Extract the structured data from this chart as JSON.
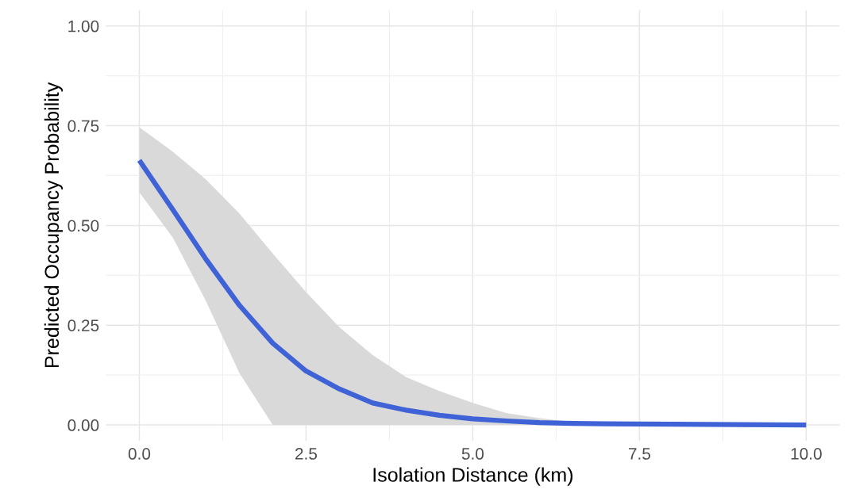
{
  "chart_data": {
    "type": "line",
    "xlabel": "Isolation Distance (km)",
    "ylabel": "Predicted Occupancy Probability",
    "xlim": [
      -0.5,
      10.5
    ],
    "ylim": [
      -0.04,
      1.04
    ],
    "xticks": [
      {
        "value": 0,
        "label": "0.0"
      },
      {
        "value": 2.5,
        "label": "2.5"
      },
      {
        "value": 5,
        "label": "5.0"
      },
      {
        "value": 7.5,
        "label": "7.5"
      },
      {
        "value": 10,
        "label": "10.0"
      }
    ],
    "yticks": [
      {
        "value": 0,
        "label": "0.00"
      },
      {
        "value": 0.25,
        "label": "0.25"
      },
      {
        "value": 0.5,
        "label": "0.50"
      },
      {
        "value": 0.75,
        "label": "0.75"
      },
      {
        "value": 1,
        "label": "1.00"
      }
    ],
    "grid": true,
    "series": [
      {
        "color": "#3f63d6",
        "x": [
          0,
          0.5,
          1,
          1.5,
          2,
          2.5,
          3,
          3.5,
          4,
          4.5,
          5,
          5.5,
          6,
          6.5,
          7,
          8,
          9,
          10
        ],
        "values": [
          0.663,
          0.54,
          0.415,
          0.3,
          0.205,
          0.135,
          0.09,
          0.055,
          0.037,
          0.024,
          0.015,
          0.01,
          0.006,
          0.004,
          0.003,
          0.002,
          0.001,
          0.0
        ],
        "lower": [
          0.583,
          0.47,
          0.31,
          0.13,
          0,
          0,
          0,
          0,
          0,
          0,
          0,
          0,
          0,
          0,
          0,
          0,
          0,
          0
        ],
        "upper": [
          0.746,
          0.685,
          0.615,
          0.53,
          0.43,
          0.333,
          0.245,
          0.175,
          0.12,
          0.085,
          0.055,
          0.03,
          0.017,
          0.007,
          0.004,
          0.002,
          0.001,
          0.0
        ]
      }
    ]
  }
}
